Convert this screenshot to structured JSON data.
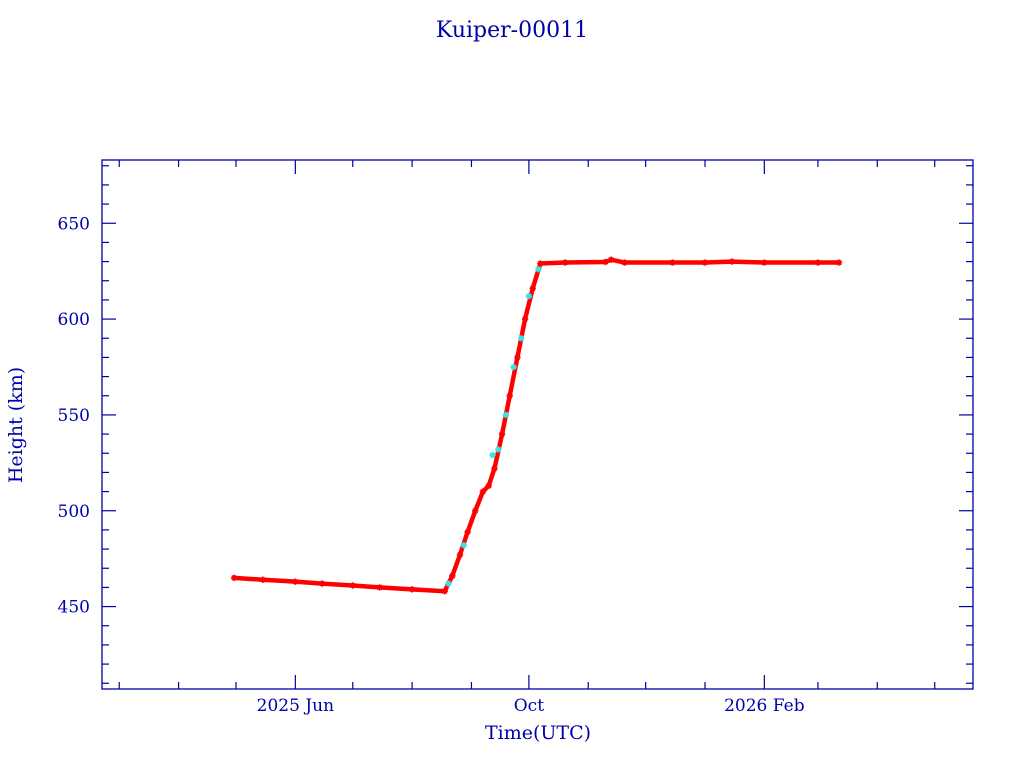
{
  "chart_data": {
    "type": "scatter",
    "title": "Kuiper-00011",
    "xlabel": "Time(UTC)",
    "ylabel": "Height (km)",
    "xlim": [
      "2025-02-20",
      "2026-05-21"
    ],
    "ylim": [
      407,
      683
    ],
    "x_ticks": [
      {
        "date": "2025-06-01",
        "label": "2025 Jun"
      },
      {
        "date": "2025-10-01",
        "label": "Oct"
      },
      {
        "date": "2026-02-01",
        "label": "2026 Feb"
      }
    ],
    "y_ticks": [
      450,
      500,
      550,
      600,
      650
    ],
    "y_minor_step": 10,
    "x_minor": "monthly",
    "grid": false,
    "colors": {
      "axis": "#0000a8",
      "primary": "#ff0000",
      "secondary": "#33e6e6"
    },
    "series": [
      {
        "color": "#ff0000",
        "marker": "star",
        "points": [
          [
            "2025-04-30",
            465.0
          ],
          [
            "2025-05-15",
            464.0
          ],
          [
            "2025-06-01",
            463.0
          ],
          [
            "2025-06-15",
            462.0
          ],
          [
            "2025-07-01",
            461.0
          ],
          [
            "2025-07-15",
            460.0
          ],
          [
            "2025-08-01",
            459.0
          ],
          [
            "2025-08-18",
            458.0
          ],
          [
            "2025-08-22",
            466.0
          ],
          [
            "2025-08-26",
            477.0
          ],
          [
            "2025-08-30",
            489.0
          ],
          [
            "2025-09-03",
            500.0
          ],
          [
            "2025-09-07",
            510.0
          ],
          [
            "2025-09-10",
            513.0
          ],
          [
            "2025-09-13",
            522.0
          ],
          [
            "2025-09-17",
            540.0
          ],
          [
            "2025-09-21",
            560.0
          ],
          [
            "2025-09-25",
            580.0
          ],
          [
            "2025-09-29",
            600.0
          ],
          [
            "2025-10-03",
            616.0
          ],
          [
            "2025-10-07",
            629.0
          ],
          [
            "2025-10-20",
            629.5
          ],
          [
            "2025-11-10",
            629.8
          ],
          [
            "2025-11-13",
            631.0
          ],
          [
            "2025-11-20",
            629.5
          ],
          [
            "2025-12-15",
            629.5
          ],
          [
            "2026-01-01",
            629.5
          ],
          [
            "2026-01-15",
            630.0
          ],
          [
            "2026-02-01",
            629.5
          ],
          [
            "2026-03-01",
            629.5
          ],
          [
            "2026-03-12",
            629.5
          ]
        ]
      },
      {
        "color": "#33e6e6",
        "marker": "star",
        "points": [
          [
            "2025-08-20",
            462.0
          ],
          [
            "2025-08-28",
            482.0
          ],
          [
            "2025-09-12",
            529.0
          ],
          [
            "2025-09-15",
            532.0
          ],
          [
            "2025-09-19",
            550.0
          ],
          [
            "2025-09-23",
            575.0
          ],
          [
            "2025-09-27",
            590.0
          ],
          [
            "2025-10-01",
            612.0
          ],
          [
            "2025-10-06",
            626.0
          ]
        ]
      }
    ]
  }
}
